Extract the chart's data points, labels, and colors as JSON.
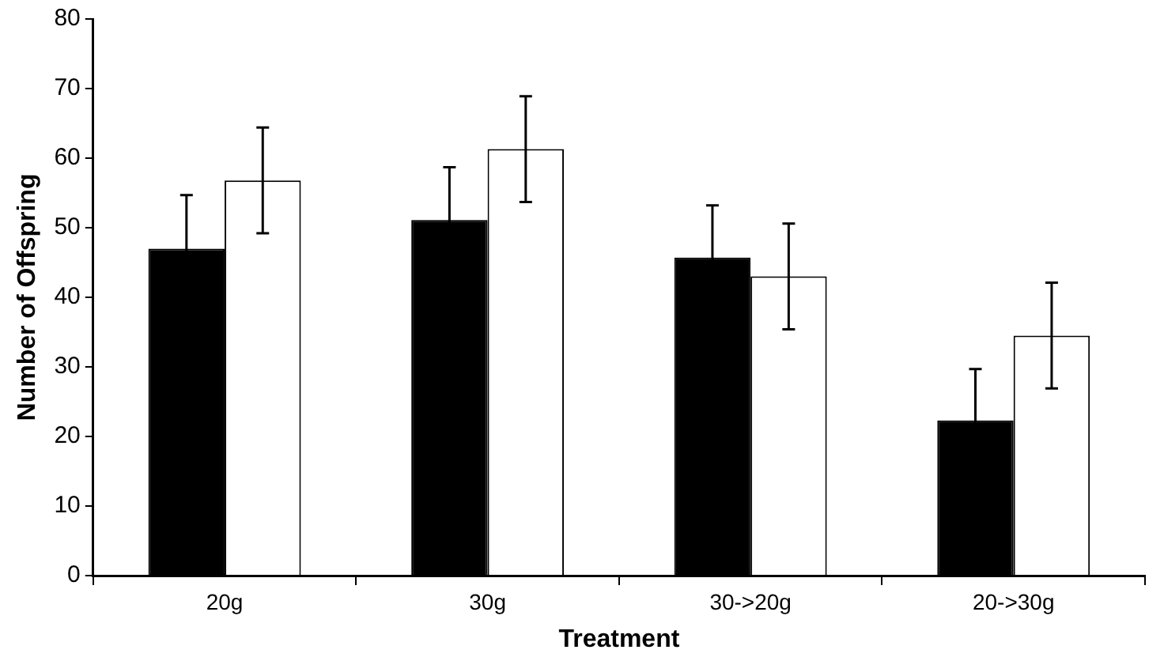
{
  "chart_data": {
    "type": "bar",
    "xlabel": "Treatment",
    "ylabel": "Number of Offspring",
    "categories": [
      "20g",
      "30g",
      "30->20g",
      "20->30g"
    ],
    "series": [
      {
        "color": "#000000",
        "values": [
          47,
          51.1,
          45.7,
          22.3
        ],
        "errors": [
          7.7,
          7.6,
          7.5,
          7.4
        ]
      },
      {
        "color": "#ffffff",
        "values": [
          56.8,
          61.3,
          43,
          34.5
        ],
        "errors": [
          7.6,
          7.6,
          7.6,
          7.6
        ]
      }
    ],
    "ylim": [
      0,
      80
    ],
    "yticks": [
      0,
      10,
      20,
      30,
      40,
      50,
      60,
      70,
      80
    ],
    "grid": false,
    "legend": false
  }
}
